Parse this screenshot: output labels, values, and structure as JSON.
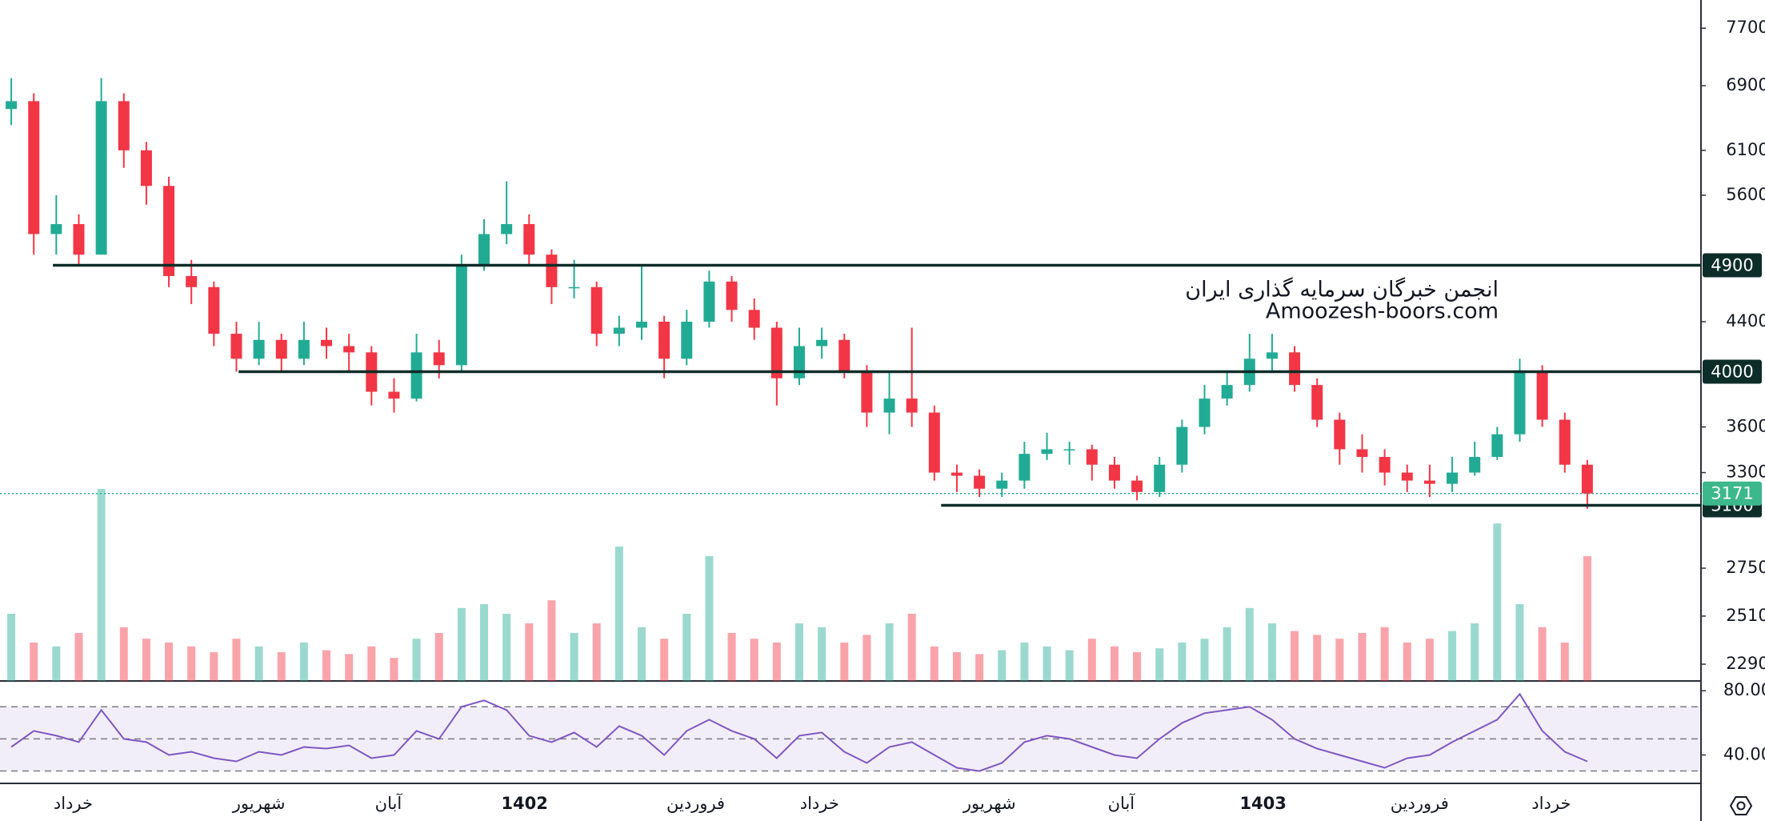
{
  "chart_data": {
    "type": "candlestick",
    "open": [
      6600,
      6700,
      5200,
      5300,
      5000,
      6700,
      6100,
      5700,
      4800,
      4700,
      4300,
      4100,
      4250,
      4100,
      4250,
      4200,
      4150,
      3850,
      3800,
      4150,
      4050,
      4900,
      5200,
      5300,
      5000,
      4700,
      4700,
      4300,
      4350,
      4400,
      4100,
      4400,
      4750,
      4500,
      4350,
      3950,
      4200,
      4250,
      4000,
      3700,
      3800,
      3700,
      3300,
      3280,
      3200,
      3250,
      3420,
      3450,
      3450,
      3350,
      3250,
      3180,
      3350,
      3600,
      3800,
      3900,
      4100,
      4150,
      3900,
      3650,
      3450,
      3400,
      3300,
      3250,
      3230,
      3300,
      3400,
      3550,
      4000,
      3650,
      3350
    ],
    "high": [
      7000,
      6800,
      5600,
      5400,
      7000,
      6800,
      6200,
      5800,
      4950,
      4750,
      4400,
      4400,
      4300,
      4400,
      4350,
      4300,
      4200,
      3950,
      4300,
      4250,
      5000,
      5350,
      5750,
      5400,
      5050,
      4950,
      4750,
      4450,
      4900,
      4450,
      4500,
      4850,
      4800,
      4600,
      4400,
      4350,
      4350,
      4300,
      4050,
      4000,
      4350,
      3750,
      3350,
      3320,
      3300,
      3500,
      3560,
      3500,
      3480,
      3400,
      3280,
      3400,
      3650,
      3900,
      4000,
      4300,
      4300,
      4200,
      3950,
      3700,
      3550,
      3450,
      3350,
      3350,
      3400,
      3500,
      3600,
      4100,
      4050,
      3700,
      3380
    ],
    "low": [
      6400,
      5000,
      5000,
      4900,
      5000,
      5900,
      5500,
      4700,
      4550,
      4200,
      4000,
      4050,
      4000,
      4050,
      4100,
      4000,
      3750,
      3700,
      3780,
      3950,
      4000,
      4850,
      5100,
      4900,
      4550,
      4600,
      4200,
      4200,
      4250,
      3950,
      4050,
      4350,
      4400,
      4250,
      3750,
      3900,
      4100,
      3950,
      3600,
      3550,
      3600,
      3250,
      3180,
      3150,
      3150,
      3200,
      3380,
      3350,
      3250,
      3200,
      3130,
      3150,
      3300,
      3550,
      3750,
      3850,
      4000,
      3850,
      3600,
      3350,
      3300,
      3220,
      3180,
      3150,
      3180,
      3280,
      3380,
      3500,
      3600,
      3300,
      3080
    ],
    "close": [
      6700,
      5200,
      5300,
      5000,
      6700,
      6100,
      5700,
      4800,
      4700,
      4300,
      4100,
      4250,
      4100,
      4250,
      4200,
      4150,
      3850,
      3800,
      4150,
      4050,
      4900,
      5200,
      5300,
      5000,
      4700,
      4700,
      4300,
      4350,
      4400,
      4100,
      4400,
      4750,
      4500,
      4350,
      3950,
      4200,
      4250,
      4000,
      3700,
      3800,
      3700,
      3300,
      3280,
      3200,
      3250,
      3420,
      3450,
      3450,
      3350,
      3250,
      3180,
      3350,
      3600,
      3800,
      3900,
      4100,
      4150,
      3900,
      3650,
      3450,
      3400,
      3300,
      3250,
      3230,
      3300,
      3400,
      3550,
      4000,
      3650,
      3350,
      3171
    ],
    "up_color": "#22ab94",
    "down_color": "#f23645",
    "volume": [
      35,
      20,
      18,
      25,
      100,
      28,
      22,
      20,
      18,
      15,
      22,
      18,
      15,
      20,
      16,
      14,
      18,
      12,
      22,
      25,
      38,
      40,
      35,
      30,
      42,
      25,
      30,
      70,
      28,
      22,
      35,
      65,
      25,
      22,
      20,
      30,
      28,
      20,
      24,
      30,
      35,
      18,
      15,
      14,
      16,
      20,
      18,
      16,
      22,
      18,
      15,
      17,
      20,
      22,
      28,
      38,
      30,
      26,
      24,
      22,
      25,
      28,
      20,
      22,
      26,
      30,
      82,
      40,
      28,
      20,
      65
    ],
    "vlim": [
      0,
      100
    ],
    "ylim": [
      2218,
      8125
    ],
    "log_scale": true,
    "yticks": [
      2290,
      2510,
      2750,
      3300,
      3600,
      4400,
      5600,
      6100,
      6900,
      7700
    ],
    "xlim": [
      -0.5,
      75.05
    ],
    "xticks": [
      {
        "value": 2.75,
        "label": "خرداد"
      },
      {
        "value": 11,
        "label": "شهریور"
      },
      {
        "value": 16.75,
        "label": "آبان"
      },
      {
        "value": 22.8,
        "label": "1402"
      },
      {
        "value": 30.4,
        "label": "فروردین"
      },
      {
        "value": 35.9,
        "label": "خرداد"
      },
      {
        "value": 43.45,
        "label": "شهریور"
      },
      {
        "value": 49.3,
        "label": "آبان"
      },
      {
        "value": 55.6,
        "label": "1403"
      },
      {
        "value": 62.55,
        "label": "فروردین"
      },
      {
        "value": 68.4,
        "label": "خرداد"
      }
    ],
    "levels": [
      {
        "value": 4900,
        "start": 1.85
      },
      {
        "value": 4000,
        "start": 10.1
      },
      {
        "value": 3100,
        "start": 41.3
      }
    ],
    "last_price": 3171,
    "watermark": [
      "انجمن خبرگان سرمایه گذاری ایران",
      "Amoozesh-boors.com"
    ],
    "rsi": {
      "values": [
        45,
        55,
        52,
        48,
        68,
        50,
        48,
        40,
        42,
        38,
        36,
        42,
        40,
        45,
        44,
        46,
        38,
        40,
        55,
        50,
        70,
        74,
        68,
        52,
        48,
        54,
        45,
        58,
        52,
        40,
        55,
        62,
        55,
        50,
        38,
        52,
        54,
        42,
        35,
        45,
        48,
        40,
        32,
        30,
        35,
        48,
        52,
        50,
        45,
        40,
        38,
        50,
        60,
        66,
        68,
        70,
        62,
        50,
        44,
        40,
        36,
        32,
        38,
        40,
        48,
        55,
        62,
        78,
        55,
        42,
        36
      ],
      "color": "#7e57c2",
      "ylim": [
        22.3,
        86.1
      ],
      "yticks": [
        {
          "value": 80,
          "label": "80.00"
        },
        {
          "value": 40,
          "label": "40.00"
        }
      ],
      "band_lines": [
        70,
        50,
        30
      ]
    }
  }
}
